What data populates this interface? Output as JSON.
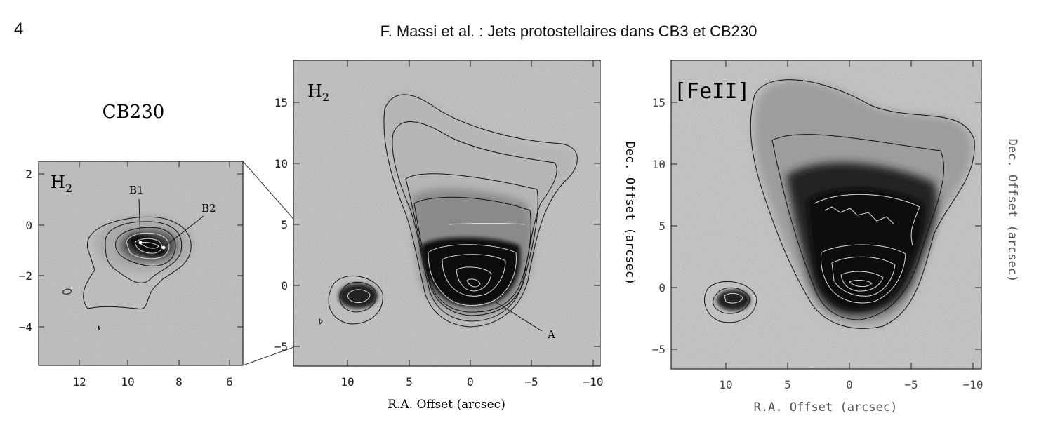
{
  "header": {
    "page_number": "4",
    "running_head": "F. Massi et al. : Jets protostellaires dans CB3 et CB230"
  },
  "panels": [
    {
      "id": "inset",
      "title": "CB230",
      "label": "H",
      "label_sub": "2",
      "annotations": [
        "B1",
        "B2"
      ],
      "x_ticks": [
        "12",
        "10",
        "8",
        "6"
      ],
      "y_ticks": [
        "2",
        "0",
        "−2",
        "−4"
      ],
      "x_range": [
        13.5,
        5.5
      ],
      "y_range": [
        -5.5,
        2.5
      ]
    },
    {
      "id": "h2",
      "label": "H",
      "label_sub": "2",
      "annotations": [
        "A"
      ],
      "x_ticks": [
        "10",
        "5",
        "0",
        "−5",
        "−10"
      ],
      "y_ticks": [
        "15",
        "10",
        "5",
        "0",
        "−5"
      ],
      "x_label": "R.A. Offset (arcsec)",
      "y_label": "Dec. Offset (arcsec)",
      "x_range": [
        14.5,
        -10.5
      ],
      "y_range": [
        -6.5,
        18.5
      ]
    },
    {
      "id": "feii",
      "label": "[FeII]",
      "x_ticks": [
        "10",
        "5",
        "0",
        "−5",
        "−10"
      ],
      "y_ticks": [
        "15",
        "10",
        "5",
        "0",
        "−5"
      ],
      "x_label": "R.A. Offset (arcsec)",
      "y_label": "Dec. Offset (arcsec)",
      "x_range": [
        14.5,
        -10.5
      ],
      "y_range": [
        -6.5,
        18.5
      ]
    }
  ]
}
